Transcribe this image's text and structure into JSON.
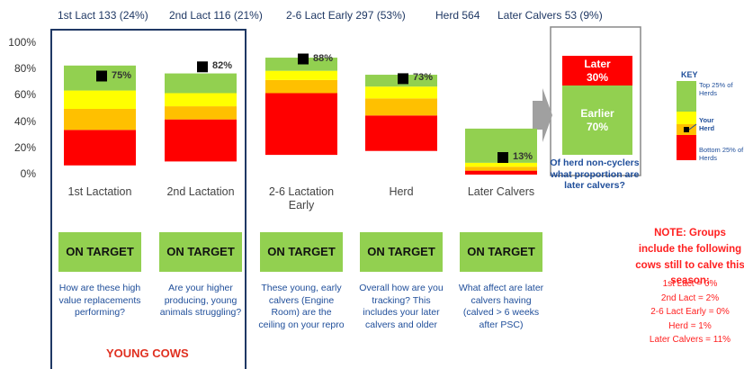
{
  "chart_data": {
    "type": "stacked_range_bar",
    "header": [
      "1st Lact 133 (24%)",
      "2nd Lact 116 (21%)",
      "2-6 Lact Early 297 (53%)",
      "Herd 564",
      "Later Calvers 53 (9%)"
    ],
    "categories": [
      "1st Lactation",
      "2nd Lactation",
      "2-6 Lactation Early",
      "Herd",
      "Later Calvers"
    ],
    "ylim": [
      0,
      100
    ],
    "yticks": [
      {
        "value": 0,
        "label": "0%"
      },
      {
        "value": 20,
        "label": "20%"
      },
      {
        "value": 40,
        "label": "40%"
      },
      {
        "value": 60,
        "label": "60%"
      },
      {
        "value": 80,
        "label": "80%"
      },
      {
        "value": 100,
        "label": "100%"
      }
    ],
    "base": [
      7,
      10,
      15,
      18,
      0
    ],
    "series": [
      {
        "color": "#ff0000",
        "values": [
          27,
          32,
          47,
          27,
          3
        ]
      },
      {
        "color": "#ffc000",
        "values": [
          16,
          10,
          10,
          13,
          3
        ]
      },
      {
        "color": "#ffff00",
        "values": [
          14,
          10,
          7,
          9,
          3
        ]
      },
      {
        "color": "#92d050",
        "values": [
          19,
          15,
          10,
          9,
          26
        ]
      }
    ],
    "markers": {
      "color": "#000000",
      "values": [
        75,
        82,
        88,
        73,
        13
      ],
      "value_labels": [
        "75%",
        "82%",
        "88%",
        "73%",
        "13%"
      ]
    },
    "status": [
      "ON TARGET",
      "ON TARGET",
      "ON TARGET",
      "ON TARGET",
      "ON TARGET"
    ],
    "questions": [
      "How are these high value replacements performing?",
      "Are your higher producing, young animals struggling?",
      "These young, early calvers (Engine Room) are the ceiling on your repro",
      "Overall how are you tracking? This includes your later calvers and older",
      "What affect are later calvers having (calved > 6 weeks after PSC)"
    ],
    "group_label": "YOUNG COWS",
    "proportion": {
      "categories": [
        "Later",
        "Earlier"
      ],
      "values": [
        30,
        70
      ],
      "value_labels": [
        "30%",
        "70%"
      ],
      "colors": [
        "#ff0000",
        "#92d050"
      ],
      "question": "Of herd non-cyclers what proportion are later calvers?"
    },
    "key": {
      "title": "KEY",
      "labels": [
        "Top 25% of Herds",
        "Your Herd",
        "Bottom 25% of Herds"
      ]
    },
    "note": {
      "title": "NOTE: Groups include the following cows still to calve this season:",
      "items": [
        "1st Lact = 0%",
        "2nd Lact = 2%",
        "2-6 Lact Early = 0%",
        "Herd = 1%",
        "Later Calvers = 11%"
      ]
    }
  }
}
